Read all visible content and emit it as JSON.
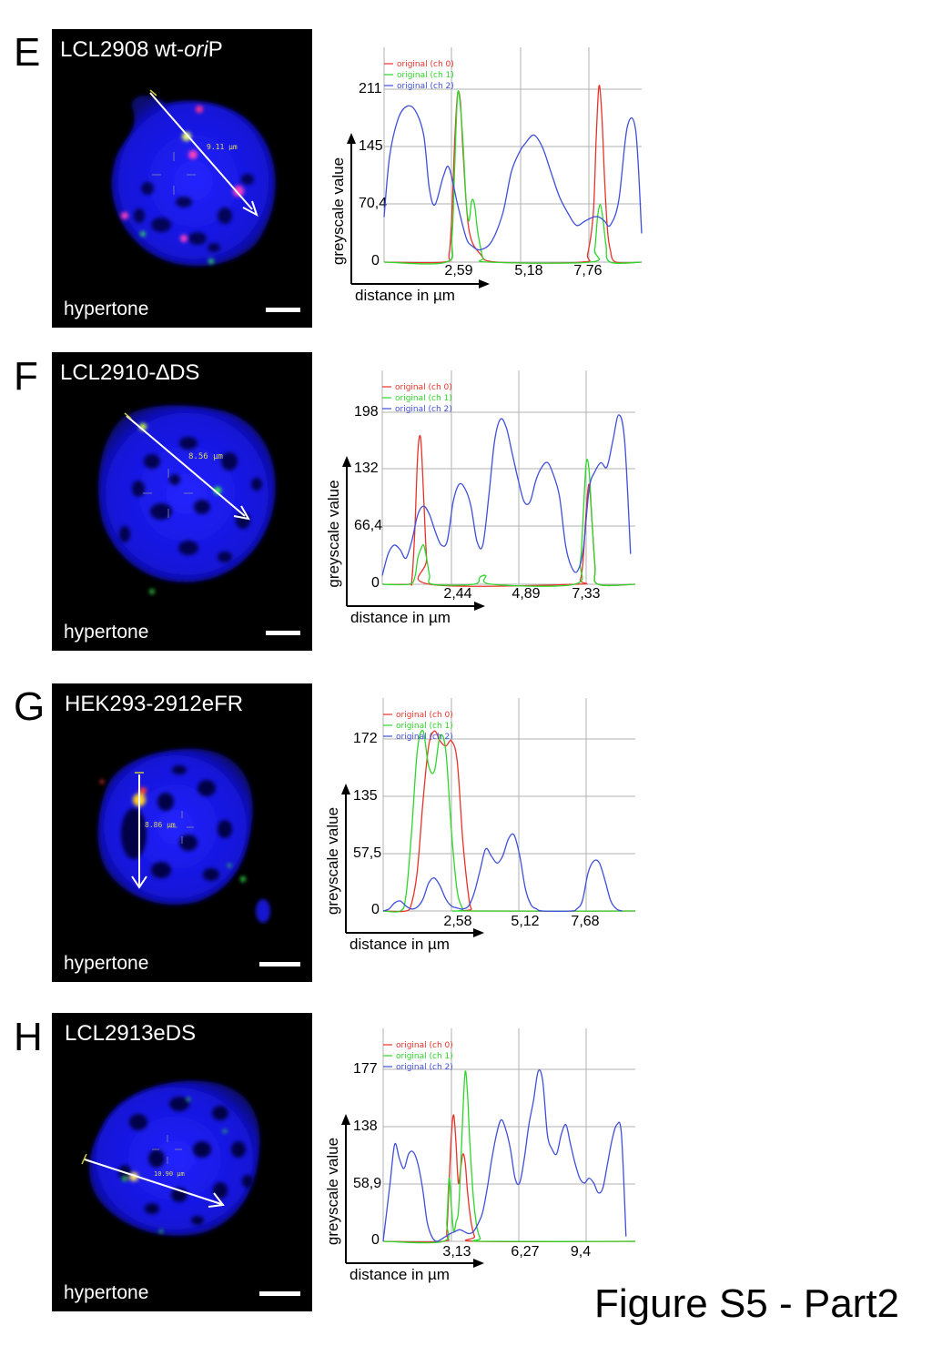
{
  "figure_title": "Figure S5 - Part2",
  "colors": {
    "ch0": "#e8322a",
    "ch1": "#2fd62a",
    "ch2": "#3f4fd8",
    "nucleus": "#1414e0",
    "grid": "#b0b0b0"
  },
  "panels": [
    {
      "letter": "E",
      "title_parts": [
        {
          "t": "LCL2908 wt-"
        },
        {
          "t": "ori",
          "italic": true
        },
        {
          "t": "P"
        }
      ],
      "condition": "hypertone",
      "line_label": "9.11 µm"
    },
    {
      "letter": "F",
      "title_parts": [
        {
          "t": "LCL2910-∆DS"
        }
      ],
      "condition": "hypertone",
      "line_label": "8.56 µm"
    },
    {
      "letter": "G",
      "title_parts": [
        {
          "t": "HEK293-2912eFR"
        }
      ],
      "condition": "hypertone",
      "line_label": "8.86 µm"
    },
    {
      "letter": "H",
      "title_parts": [
        {
          "t": "LCL2913eDS"
        }
      ],
      "condition": "hypertone",
      "line_label": "10.90 µm"
    }
  ],
  "chart_data": [
    {
      "type": "line",
      "panel": "E",
      "xlabel": "distance in µm",
      "ylabel": "greyscale value",
      "xticks": [
        "0",
        "2,59",
        "5,18",
        "7,76"
      ],
      "yticks": [
        "0",
        "70,4",
        "145",
        "211"
      ],
      "x_range": [
        0,
        9.11
      ],
      "ylim": [
        0,
        211
      ],
      "legend": [
        "original (ch 0)",
        "original (ch 1)",
        "original (ch 2)"
      ],
      "legend_position": "top-left",
      "series": [
        {
          "name": "original (ch 0)",
          "x": [
            0,
            2.1,
            2.3,
            2.4,
            2.5,
            2.6,
            2.7,
            2.8,
            3.0,
            3.4,
            4.0,
            7.0,
            7.2,
            7.4,
            7.5,
            7.6,
            7.7,
            7.8,
            7.9,
            8.0,
            8.2,
            9.11
          ],
          "y": [
            0,
            0,
            10,
            60,
            150,
            205,
            195,
            130,
            40,
            10,
            0,
            0,
            10,
            60,
            150,
            215,
            180,
            100,
            40,
            15,
            0,
            0
          ]
        },
        {
          "name": "original (ch 1)",
          "x": [
            0,
            2.2,
            2.4,
            2.5,
            2.6,
            2.7,
            2.8,
            2.9,
            3.0,
            3.1,
            3.2,
            3.3,
            3.4,
            3.5,
            3.7,
            7.3,
            7.45,
            7.55,
            7.65,
            7.75,
            7.85,
            8.0,
            9.11
          ],
          "y": [
            0,
            0,
            30,
            120,
            205,
            190,
            140,
            75,
            50,
            75,
            70,
            40,
            20,
            5,
            0,
            0,
            15,
            55,
            70,
            50,
            20,
            0,
            0
          ]
        },
        {
          "name": "original (ch 2)",
          "x": [
            0,
            0.2,
            0.5,
            0.8,
            1.1,
            1.4,
            1.6,
            1.8,
            2.1,
            2.3,
            2.6,
            2.9,
            3.1,
            3.4,
            3.8,
            4.2,
            4.5,
            4.8,
            5.0,
            5.3,
            5.6,
            5.9,
            6.2,
            6.5,
            6.8,
            7.1,
            7.4,
            7.6,
            7.8,
            8.0,
            8.3,
            8.6,
            8.9,
            9.11
          ],
          "y": [
            55,
            130,
            175,
            190,
            185,
            155,
            90,
            70,
            105,
            115,
            70,
            30,
            20,
            15,
            25,
            60,
            110,
            135,
            145,
            155,
            140,
            110,
            80,
            60,
            45,
            50,
            55,
            55,
            50,
            45,
            75,
            165,
            160,
            35
          ]
        }
      ]
    },
    {
      "type": "line",
      "panel": "F",
      "xlabel": "distance in µm",
      "ylabel": "greyscale value",
      "xticks": [
        "0",
        "2,44",
        "4,89",
        "7,33"
      ],
      "yticks": [
        "0",
        "66,4",
        "132",
        "198"
      ],
      "x_range": [
        0,
        8.56
      ],
      "ylim": [
        0,
        198
      ],
      "legend": [
        "original (ch 0)",
        "original (ch 1)",
        "original (ch 2)"
      ],
      "legend_position": "top-left",
      "series": [
        {
          "name": "original (ch 0)",
          "x": [
            0,
            0.9,
            1.0,
            1.1,
            1.2,
            1.3,
            1.4,
            1.5,
            1.6,
            6.5,
            6.7,
            6.8,
            6.9,
            7.0,
            7.1,
            7.2,
            7.3,
            8.56
          ],
          "y": [
            0,
            0,
            5,
            60,
            150,
            168,
            100,
            30,
            0,
            0,
            5,
            30,
            85,
            115,
            70,
            20,
            0,
            0
          ]
        },
        {
          "name": "original (ch 1)",
          "x": [
            0,
            0.9,
            1.1,
            1.2,
            1.3,
            1.4,
            1.5,
            1.6,
            1.7,
            3.1,
            3.3,
            3.5,
            3.7,
            6.5,
            6.7,
            6.8,
            6.9,
            7.0,
            7.1,
            7.2,
            7.3,
            8.56
          ],
          "y": [
            0,
            0,
            8,
            30,
            40,
            45,
            30,
            10,
            0,
            0,
            8,
            10,
            0,
            0,
            25,
            80,
            140,
            130,
            70,
            20,
            0,
            0
          ]
        },
        {
          "name": "original (ch 2)",
          "x": [
            0,
            0.2,
            0.4,
            0.6,
            0.8,
            1.0,
            1.2,
            1.4,
            1.6,
            1.8,
            2.0,
            2.2,
            2.4,
            2.6,
            2.8,
            3.0,
            3.2,
            3.4,
            3.6,
            3.8,
            4.0,
            4.2,
            4.4,
            4.6,
            4.8,
            5.0,
            5.2,
            5.4,
            5.6,
            5.8,
            6.0,
            6.2,
            6.4,
            6.6,
            6.8,
            7.0,
            7.2,
            7.4,
            7.6,
            7.8,
            8.0,
            8.2,
            8.4
          ],
          "y": [
            10,
            35,
            45,
            40,
            30,
            50,
            80,
            90,
            80,
            60,
            45,
            50,
            95,
            115,
            110,
            90,
            50,
            45,
            100,
            165,
            190,
            180,
            150,
            120,
            95,
            95,
            120,
            135,
            140,
            125,
            100,
            45,
            20,
            15,
            40,
            110,
            130,
            140,
            135,
            165,
            195,
            165,
            35
          ]
        }
      ]
    },
    {
      "type": "line",
      "panel": "G",
      "xlabel": "distance in µm",
      "ylabel": "greyscale value",
      "xticks": [
        "0",
        "2,58",
        "5,12",
        "7,68"
      ],
      "yticks": [
        "0",
        "57,5",
        "135",
        "172"
      ],
      "x_range": [
        0,
        8.86
      ],
      "ylim": [
        0,
        172
      ],
      "legend": [
        "original (ch 0)",
        "original (ch 1)",
        "original (ch 2)"
      ],
      "legend_position": "top-left",
      "series": [
        {
          "name": "original (ch 0)",
          "x": [
            0,
            0.8,
            1.0,
            1.2,
            1.4,
            1.6,
            1.8,
            2.0,
            2.2,
            2.4,
            2.6,
            2.8,
            3.0,
            3.1,
            3.2,
            8.86
          ],
          "y": [
            0,
            0,
            8,
            40,
            110,
            165,
            180,
            170,
            165,
            170,
            150,
            70,
            15,
            2,
            0,
            0
          ]
        },
        {
          "name": "original (ch 1)",
          "x": [
            0,
            0.6,
            0.8,
            1.0,
            1.2,
            1.4,
            1.6,
            1.8,
            2.0,
            2.2,
            2.4,
            2.6,
            2.8,
            2.9,
            8.86
          ],
          "y": [
            0,
            0,
            15,
            80,
            160,
            180,
            145,
            140,
            175,
            160,
            80,
            20,
            2,
            0,
            0
          ]
        },
        {
          "name": "original (ch 2)",
          "x": [
            0,
            0.2,
            0.4,
            0.6,
            0.8,
            1.0,
            1.2,
            1.4,
            1.6,
            1.8,
            2.0,
            2.2,
            2.4,
            2.6,
            2.8,
            3.0,
            3.2,
            3.4,
            3.6,
            3.8,
            4.0,
            4.2,
            4.4,
            4.6,
            4.8,
            5.0,
            5.2,
            5.4,
            5.6,
            6.6,
            6.8,
            7.0,
            7.2,
            7.4,
            7.6,
            7.8,
            8.0,
            8.2,
            8.4
          ],
          "y": [
            0,
            2,
            8,
            10,
            5,
            2,
            4,
            12,
            28,
            33,
            25,
            12,
            5,
            3,
            2,
            5,
            18,
            40,
            62,
            55,
            48,
            55,
            72,
            76,
            55,
            22,
            6,
            2,
            0,
            0,
            2,
            10,
            38,
            50,
            48,
            30,
            10,
            2,
            0
          ]
        }
      ]
    },
    {
      "type": "line",
      "panel": "H",
      "xlabel": "distance in µm",
      "ylabel": "greyscale value",
      "xticks": [
        "0",
        "3,13",
        "6,27",
        "9,4"
      ],
      "yticks": [
        "0",
        "58,9",
        "138",
        "177"
      ],
      "x_range": [
        0,
        10.9
      ],
      "ylim": [
        0,
        177
      ],
      "legend": [
        "original (ch 0)",
        "original (ch 1)",
        "original (ch 2)"
      ],
      "legend_position": "top-left",
      "series": [
        {
          "name": "original (ch 0)",
          "x": [
            0,
            2.6,
            2.75,
            2.85,
            2.95,
            3.05,
            3.15,
            3.25,
            3.35,
            3.45,
            3.55,
            3.65,
            3.8,
            3.95,
            4.1,
            10.9
          ],
          "y": [
            0,
            0,
            10,
            60,
            110,
            130,
            100,
            60,
            75,
            90,
            80,
            50,
            20,
            5,
            0,
            0
          ]
        },
        {
          "name": "original (ch 1)",
          "x": [
            0,
            2.6,
            2.75,
            2.85,
            2.95,
            3.05,
            3.15,
            3.25,
            3.35,
            3.45,
            3.55,
            3.65,
            3.75,
            3.9,
            4.05,
            4.2,
            4.4,
            10.9
          ],
          "y": [
            0,
            0,
            20,
            65,
            35,
            10,
            20,
            30,
            75,
            135,
            175,
            150,
            100,
            45,
            15,
            3,
            0,
            0
          ]
        },
        {
          "name": "original (ch 2)",
          "x": [
            0,
            0.3,
            0.5,
            0.7,
            0.9,
            1.1,
            1.3,
            1.5,
            1.7,
            1.9,
            2.1,
            2.3,
            2.5,
            2.7,
            2.9,
            3.1,
            3.3,
            3.5,
            3.7,
            3.9,
            4.1,
            4.3,
            4.5,
            4.7,
            4.9,
            5.1,
            5.3,
            5.5,
            5.7,
            5.9,
            6.1,
            6.3,
            6.5,
            6.7,
            6.9,
            7.1,
            7.3,
            7.5,
            7.7,
            7.9,
            8.1,
            8.3,
            8.5,
            8.7,
            8.9,
            9.1,
            9.3,
            9.5,
            9.7,
            9.9,
            10.1,
            10.3,
            10.5
          ],
          "y": [
            0,
            60,
            100,
            85,
            75,
            90,
            92,
            80,
            55,
            20,
            5,
            0,
            2,
            5,
            8,
            10,
            12,
            10,
            8,
            10,
            18,
            30,
            55,
            85,
            110,
            125,
            115,
            95,
            65,
            60,
            85,
            120,
            145,
            175,
            165,
            110,
            95,
            90,
            110,
            120,
            100,
            80,
            65,
            60,
            65,
            60,
            50,
            55,
            80,
            105,
            120,
            110,
            5
          ]
        }
      ]
    }
  ]
}
